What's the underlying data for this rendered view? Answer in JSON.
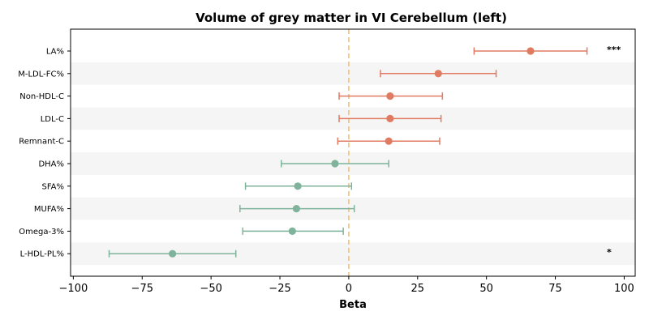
{
  "chart_data": {
    "type": "forest",
    "title": "Volume of grey matter in VI Cerebellum (left)",
    "xlabel": "Beta",
    "xlim": [
      -101,
      104
    ],
    "xticks": [
      -100,
      -75,
      -50,
      -25,
      0,
      25,
      50,
      75,
      100
    ],
    "xtick_labels": [
      "−100",
      "−75",
      "−50",
      "−25",
      "0",
      "25",
      "50",
      "75",
      "100"
    ],
    "reference_line": 0,
    "colors": {
      "positive": "#e07b62",
      "negative": "#7fb39b",
      "refline": "#f2bd6e",
      "band": "#f5f5f5"
    },
    "rows": [
      {
        "label": "LA%",
        "beta": 66,
        "lo": 45.5,
        "hi": 86.5,
        "direction": "positive",
        "sig": "***"
      },
      {
        "label": "M-LDL-FC%",
        "beta": 32.5,
        "lo": 11.5,
        "hi": 53.5,
        "direction": "positive",
        "sig": ""
      },
      {
        "label": "Non-HDL-C",
        "beta": 15,
        "lo": -3.5,
        "hi": 34,
        "direction": "positive",
        "sig": ""
      },
      {
        "label": "LDL-C",
        "beta": 15,
        "lo": -3.5,
        "hi": 33.5,
        "direction": "positive",
        "sig": ""
      },
      {
        "label": "Remnant-C",
        "beta": 14.5,
        "lo": -4,
        "hi": 33,
        "direction": "positive",
        "sig": ""
      },
      {
        "label": "DHA%",
        "beta": -5,
        "lo": -24.5,
        "hi": 14.5,
        "direction": "negative",
        "sig": ""
      },
      {
        "label": "SFA%",
        "beta": -18.5,
        "lo": -37.5,
        "hi": 1,
        "direction": "negative",
        "sig": ""
      },
      {
        "label": "MUFA%",
        "beta": -19,
        "lo": -39.5,
        "hi": 2,
        "direction": "negative",
        "sig": ""
      },
      {
        "label": "Omega-3%",
        "beta": -20.5,
        "lo": -38.5,
        "hi": -2,
        "direction": "negative",
        "sig": ""
      },
      {
        "label": "L-HDL-PL%",
        "beta": -64,
        "lo": -87,
        "hi": -41,
        "direction": "negative",
        "sig": "*"
      }
    ]
  }
}
